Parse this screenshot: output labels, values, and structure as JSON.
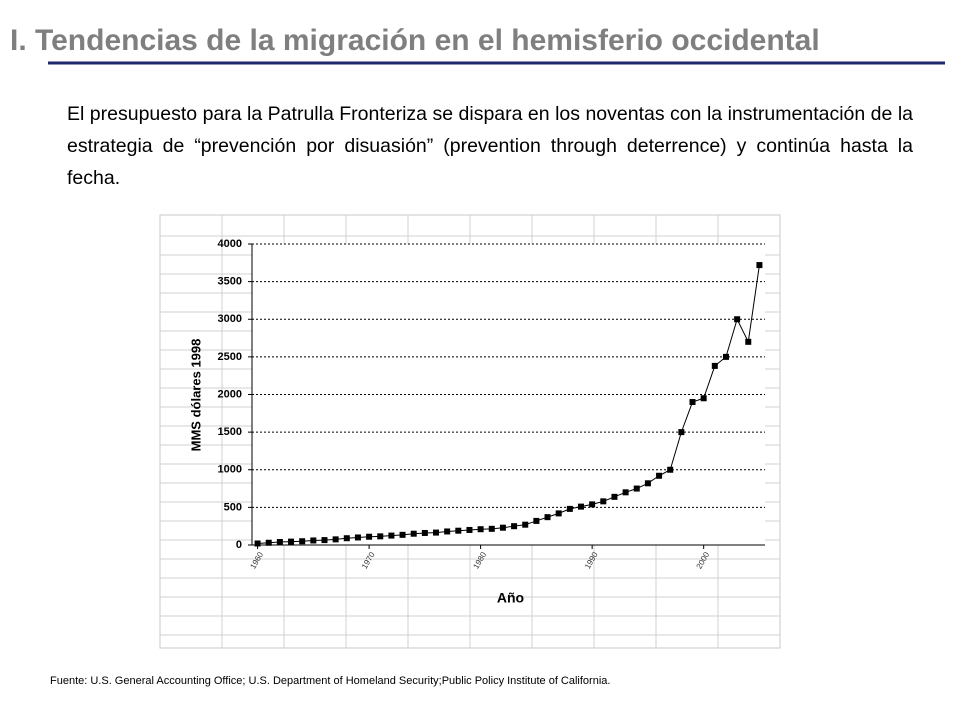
{
  "header": {
    "title": "I. Tendencias  de la migración en el hemisferio occidental"
  },
  "text": "El presupuesto para la Patrulla Fronteriza se dispara en los noventas con la instrumentación de la estrategia de “prevención por disuasión” (prevention through deterrence) y continúa hasta la fecha.",
  "chart_data": {
    "type": "line",
    "x_label": "Año",
    "y_label": "MMS dólares 1998",
    "x": [
      1960,
      1961,
      1962,
      1963,
      1964,
      1965,
      1966,
      1967,
      1968,
      1969,
      1970,
      1971,
      1972,
      1973,
      1974,
      1975,
      1976,
      1977,
      1978,
      1979,
      1980,
      1981,
      1982,
      1983,
      1984,
      1985,
      1986,
      1987,
      1988,
      1989,
      1990,
      1991,
      1992,
      1993,
      1994,
      1995,
      1996,
      1997,
      1998,
      1999,
      2000,
      2001,
      2002,
      2003,
      2004,
      2005
    ],
    "values": [
      20,
      30,
      40,
      45,
      50,
      60,
      65,
      75,
      90,
      100,
      110,
      115,
      125,
      135,
      150,
      160,
      165,
      180,
      190,
      200,
      210,
      215,
      230,
      250,
      270,
      320,
      370,
      420,
      480,
      510,
      540,
      580,
      640,
      700,
      750,
      820,
      920,
      1000,
      1500,
      1900,
      1950,
      2380,
      2500,
      3000,
      2700,
      3720
    ],
    "color": "#000000",
    "xlim": [
      1959.5,
      2005.5
    ],
    "xticks": [
      1960,
      1970,
      1980,
      1990,
      2000
    ],
    "ylim": [
      0,
      4000
    ],
    "yticks": [
      0,
      500,
      1000,
      1500,
      2000,
      2500,
      3000,
      3500,
      4000
    ],
    "grid": true
  },
  "footer": {
    "source": "Fuente:   U.S. General Accounting Office; U.S. Department of Homeland  Security;Public Policy Institute of California."
  }
}
